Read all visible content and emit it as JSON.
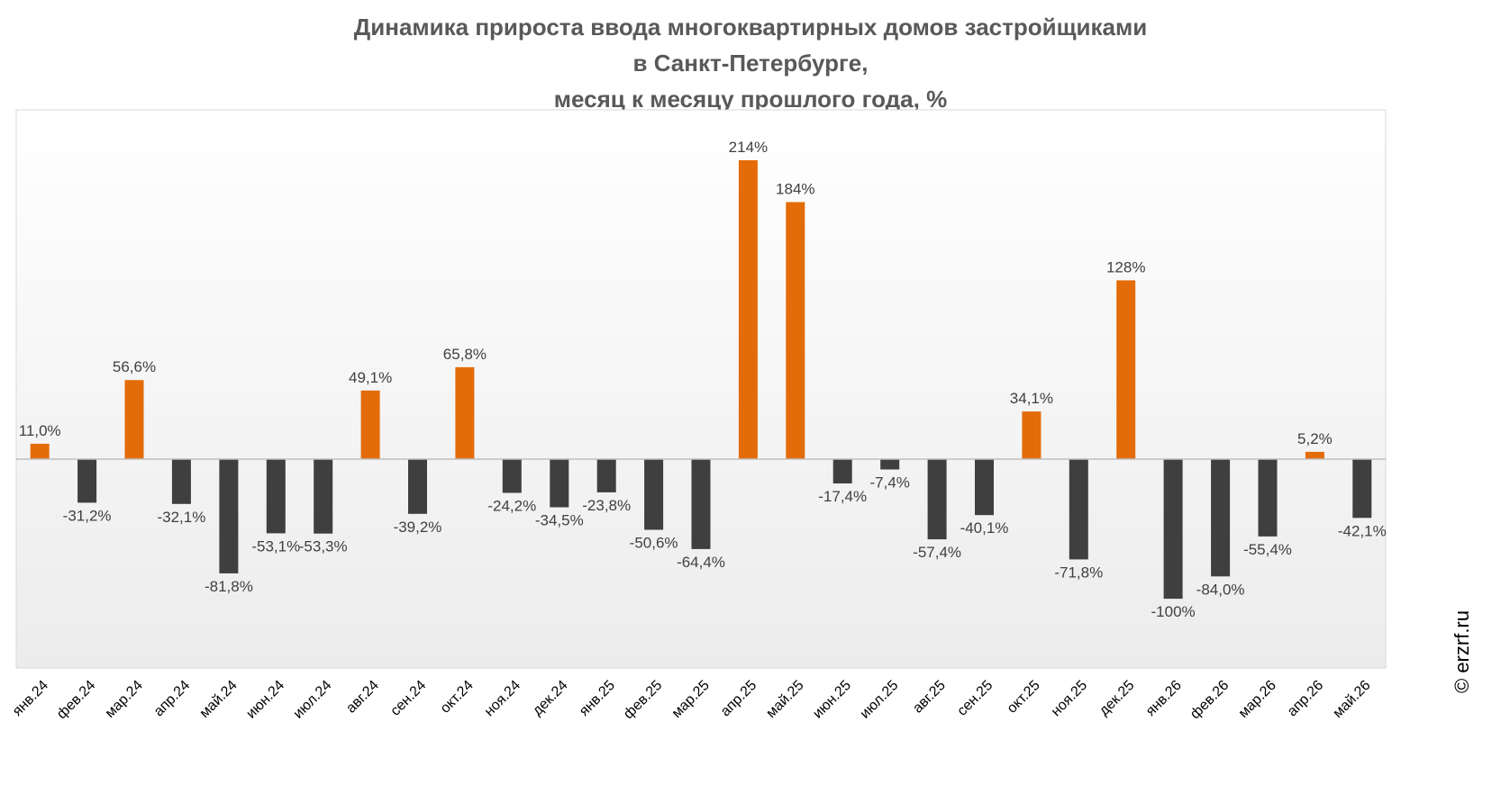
{
  "chart_data": {
    "type": "bar",
    "title_lines": [
      "Динамика прироста ввода многоквартирных домов застройщиками",
      "в Санкт-Петербурге,",
      "месяц к месяцу прошлого года, %"
    ],
    "categories": [
      "янв.24",
      "фев.24",
      "мар.24",
      "апр.24",
      "май.24",
      "июн.24",
      "июл.24",
      "авг.24",
      "сен.24",
      "окт.24",
      "ноя.24",
      "дек.24",
      "янв.25",
      "фев.25",
      "мар.25",
      "апр.25",
      "май.25",
      "июн.25",
      "июл.25",
      "авг.25",
      "сен.25",
      "окт.25",
      "ноя.25",
      "дек.25",
      "янв.26",
      "фев.26",
      "мар.26",
      "апр.26",
      "май.26"
    ],
    "values": [
      11.0,
      -31.2,
      56.6,
      -32.1,
      -81.8,
      -53.1,
      -53.3,
      49.1,
      -39.2,
      65.8,
      -24.2,
      -34.5,
      -23.8,
      -50.6,
      -64.4,
      214,
      184,
      -17.4,
      -7.4,
      -57.4,
      -40.1,
      34.1,
      -71.8,
      128,
      -100,
      -84.0,
      -55.4,
      5.2,
      -42.1
    ],
    "data_labels": [
      "11,0%",
      "-31,2%",
      "56,6%",
      "-32,1%",
      "-81,8%",
      "-53,1%",
      "-53,3%",
      "49,1%",
      "-39,2%",
      "65,8%",
      "-24,2%",
      "-34,5%",
      "-23,8%",
      "-50,6%",
      "-64,4%",
      "214%",
      "184%",
      "-17,4%",
      "-7,4%",
      "-57,4%",
      "-40,1%",
      "34,1%",
      "-71,8%",
      "128%",
      "-100%",
      "-84,0%",
      "-55,4%",
      "5,2%",
      "-42,1%"
    ],
    "xlabel": "",
    "ylabel": "",
    "ylim": [
      -150,
      250
    ],
    "grid": false,
    "legend": "none",
    "colors": {
      "positive": "#E36C09",
      "negative": "#3F3F3F",
      "axis": "#BFBFBF",
      "label": "#404040"
    }
  },
  "watermark": "© erzrf.ru"
}
